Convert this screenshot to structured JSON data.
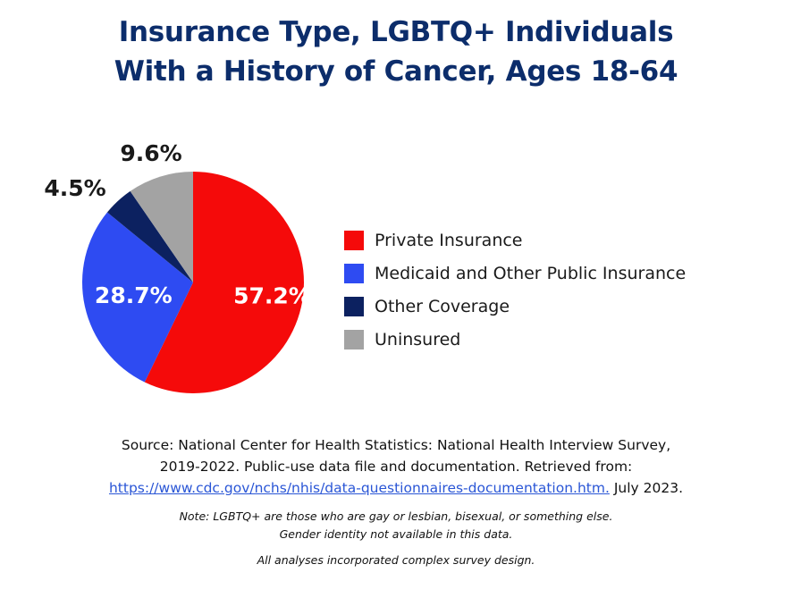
{
  "title": {
    "line1": "Insurance Type, LGBTQ+ Individuals",
    "line2": "With a History of Cancer, Ages 18-64"
  },
  "chart_data": {
    "type": "pie",
    "title": "Insurance Type, LGBTQ+ Individuals With a History of Cancer, Ages 18-64",
    "legend_position": "right",
    "slices": [
      {
        "label": "Private Insurance",
        "value": 57.2,
        "display": "57.2%",
        "color": "#f50a0a"
      },
      {
        "label": "Medicaid and Other Public Insurance",
        "value": 28.7,
        "display": "28.7%",
        "color": "#2e4bf2"
      },
      {
        "label": "Other Coverage",
        "value": 4.5,
        "display": "4.5%",
        "color": "#0c2160"
      },
      {
        "label": "Uninsured",
        "value": 9.6,
        "display": "9.6%",
        "color": "#a3a3a3"
      }
    ]
  },
  "source": {
    "line1": "Source: National Center for Health Statistics: National Health Interview Survey,",
    "line2": "2019-2022. Public-use data file and documentation. Retrieved from:",
    "link": "https://www.cdc.gov/nchs/nhis/data-questionnaires-documentation.htm.",
    "date": " July 2023."
  },
  "note": {
    "label": "Note",
    "line1_rest": ": LGBTQ+ are those who are gay or lesbian, bisexual, or something else.",
    "line2": "Gender identity not available in this data."
  },
  "analyses": "All analyses incorporated complex survey design."
}
